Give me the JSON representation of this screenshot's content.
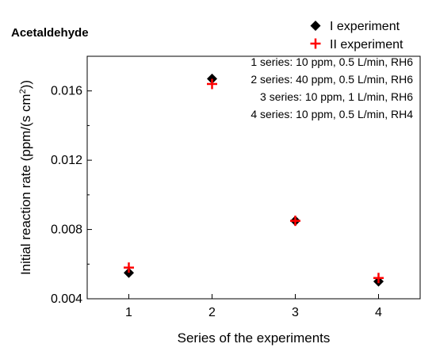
{
  "chart_data": {
    "type": "scatter",
    "title": "Acetaldehyde",
    "xlabel": "Series of the experiments",
    "ylabel": "Initial reaction rate (ppm/(s cm²))",
    "ylabel_main": "Initial reaction rate (ppm/(s cm",
    "ylabel_sup": "2",
    "ylabel_end": "))",
    "x_ticks": [
      "1",
      "2",
      "3",
      "4"
    ],
    "y_ticks": [
      "0.004",
      "0.008",
      "0.012",
      "0.016"
    ],
    "xlim": [
      0.5,
      4.5
    ],
    "ylim": [
      0.004,
      0.018
    ],
    "grid": false,
    "legend_position": "top-right",
    "series": [
      {
        "name": "I experiment",
        "marker": "diamond",
        "color": "#000000",
        "x": [
          1,
          2,
          3,
          4
        ],
        "y": [
          0.0055,
          0.0167,
          0.0085,
          0.005
        ]
      },
      {
        "name": "II experiment",
        "marker": "plus",
        "color": "#ff0000",
        "x": [
          1,
          2,
          3,
          4
        ],
        "y": [
          0.0058,
          0.0164,
          0.0085,
          0.0052
        ]
      }
    ],
    "annotations": [
      "1 series: 10 ppm, 0.5 L/min, RH6",
      "2 series: 40 ppm, 0.5 L/min, RH6",
      "3 series: 10 ppm, 1 L/min, RH6",
      "4 series: 10 ppm, 0.5 L/min, RH4"
    ]
  }
}
